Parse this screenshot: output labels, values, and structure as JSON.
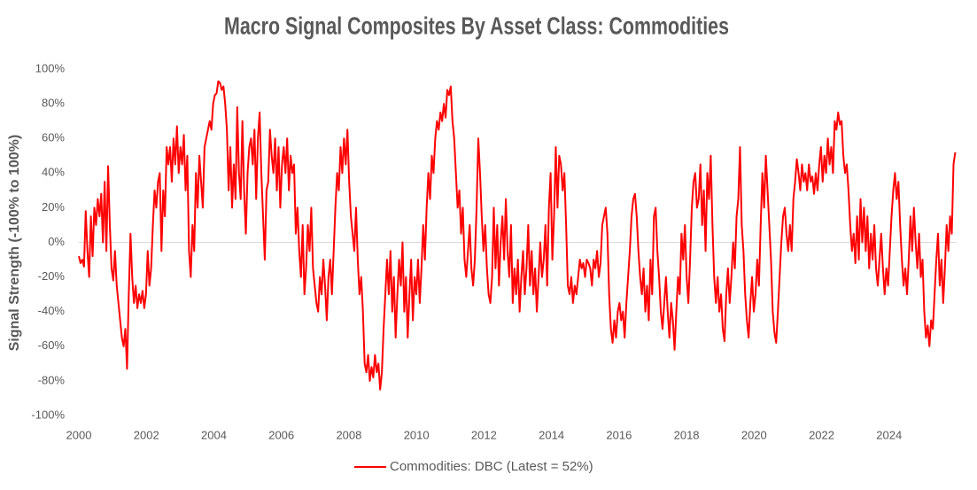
{
  "chart_data": {
    "type": "line",
    "title": "Macro Signal Composites By Asset Class: Commodities",
    "y_label": "Signal Strength (-100% to 100%)",
    "legend": "bottom",
    "grid": false,
    "xlim": [
      2000,
      2026
    ],
    "xticks": [
      2000,
      2002,
      2004,
      2006,
      2008,
      2010,
      2012,
      2014,
      2016,
      2018,
      2020,
      2022,
      2024
    ],
    "ylim": [
      -100,
      100
    ],
    "yticks": [
      {
        "value": -100,
        "label": "-100%"
      },
      {
        "value": -80,
        "label": "-80%"
      },
      {
        "value": -60,
        "label": "-60%"
      },
      {
        "value": -40,
        "label": "-40%"
      },
      {
        "value": -20,
        "label": "-20%"
      },
      {
        "value": 0,
        "label": "0%"
      },
      {
        "value": 20,
        "label": "20%"
      },
      {
        "value": 40,
        "label": "40%"
      },
      {
        "value": 60,
        "label": "60%"
      },
      {
        "value": 80,
        "label": "80%"
      },
      {
        "value": 100,
        "label": "100%"
      }
    ],
    "x": [
      2000,
      2000.051,
      2000.102,
      2000.153,
      2000.204,
      2000.255,
      2000.306,
      2000.357,
      2000.408,
      2000.459,
      2000.51,
      2000.561,
      2000.612,
      2000.663,
      2000.714,
      2000.765,
      2000.816,
      2000.867,
      2000.918,
      2000.969,
      2001.02,
      2001.071,
      2001.122,
      2001.173,
      2001.224,
      2001.275,
      2001.326,
      2001.377,
      2001.428,
      2001.479,
      2001.53,
      2001.581,
      2001.632,
      2001.683,
      2001.734,
      2001.785,
      2001.836,
      2001.887,
      2001.938,
      2001.989,
      2002.04,
      2002.091,
      2002.142,
      2002.193,
      2002.244,
      2002.295,
      2002.346,
      2002.397,
      2002.448,
      2002.499,
      2002.55,
      2002.601,
      2002.652,
      2002.703,
      2002.754,
      2002.805,
      2002.856,
      2002.907,
      2002.958,
      2003.009,
      2003.06,
      2003.111,
      2003.162,
      2003.213,
      2003.264,
      2003.315,
      2003.366,
      2003.417,
      2003.468,
      2003.519,
      2003.57,
      2003.621,
      2003.672,
      2003.723,
      2003.774,
      2003.825,
      2003.876,
      2003.927,
      2003.978,
      2004.029,
      2004.08,
      2004.131,
      2004.182,
      2004.233,
      2004.284,
      2004.335,
      2004.386,
      2004.437,
      2004.488,
      2004.539,
      2004.59,
      2004.641,
      2004.692,
      2004.743,
      2004.794,
      2004.845,
      2004.896,
      2004.947,
      2004.998,
      2005.049,
      2005.1,
      2005.151,
      2005.202,
      2005.253,
      2005.304,
      2005.355,
      2005.406,
      2005.457,
      2005.508,
      2005.559,
      2005.61,
      2005.661,
      2005.712,
      2005.763,
      2005.814,
      2005.865,
      2005.916,
      2005.967,
      2006.018,
      2006.069,
      2006.12,
      2006.171,
      2006.222,
      2006.273,
      2006.324,
      2006.375,
      2006.426,
      2006.477,
      2006.528,
      2006.579,
      2006.63,
      2006.681,
      2006.732,
      2006.783,
      2006.834,
      2006.885,
      2006.936,
      2006.987,
      2007.038,
      2007.089,
      2007.14,
      2007.191,
      2007.242,
      2007.293,
      2007.344,
      2007.395,
      2007.446,
      2007.497,
      2007.548,
      2007.599,
      2007.65,
      2007.701,
      2007.752,
      2007.803,
      2007.854,
      2007.905,
      2007.956,
      2008.007,
      2008.058,
      2008.109,
      2008.16,
      2008.211,
      2008.262,
      2008.313,
      2008.364,
      2008.415,
      2008.466,
      2008.517,
      2008.568,
      2008.619,
      2008.67,
      2008.721,
      2008.772,
      2008.823,
      2008.874,
      2008.925,
      2008.976,
      2009.027,
      2009.078,
      2009.129,
      2009.18,
      2009.231,
      2009.282,
      2009.333,
      2009.384,
      2009.435,
      2009.486,
      2009.537,
      2009.588,
      2009.639,
      2009.69,
      2009.741,
      2009.792,
      2009.843,
      2009.894,
      2009.945,
      2009.996,
      2010.047,
      2010.098,
      2010.149,
      2010.2,
      2010.251,
      2010.302,
      2010.353,
      2010.404,
      2010.455,
      2010.506,
      2010.557,
      2010.608,
      2010.659,
      2010.71,
      2010.761,
      2010.812,
      2010.863,
      2010.914,
      2010.965,
      2011.016,
      2011.067,
      2011.118,
      2011.169,
      2011.22,
      2011.271,
      2011.322,
      2011.373,
      2011.424,
      2011.475,
      2011.526,
      2011.577,
      2011.628,
      2011.679,
      2011.73,
      2011.781,
      2011.832,
      2011.883,
      2011.934,
      2011.985,
      2012.036,
      2012.087,
      2012.138,
      2012.189,
      2012.24,
      2012.291,
      2012.342,
      2012.393,
      2012.444,
      2012.495,
      2012.546,
      2012.597,
      2012.648,
      2012.699,
      2012.75,
      2012.801,
      2012.852,
      2012.903,
      2012.954,
      2013.005,
      2013.056,
      2013.107,
      2013.158,
      2013.209,
      2013.26,
      2013.311,
      2013.362,
      2013.413,
      2013.464,
      2013.515,
      2013.566,
      2013.617,
      2013.668,
      2013.719,
      2013.77,
      2013.821,
      2013.872,
      2013.923,
      2013.974,
      2014.025,
      2014.076,
      2014.127,
      2014.178,
      2014.229,
      2014.28,
      2014.331,
      2014.382,
      2014.433,
      2014.484,
      2014.535,
      2014.586,
      2014.637,
      2014.688,
      2014.739,
      2014.79,
      2014.841,
      2014.892,
      2014.943,
      2014.994,
      2015.045,
      2015.096,
      2015.147,
      2015.198,
      2015.249,
      2015.3,
      2015.351,
      2015.402,
      2015.453,
      2015.504,
      2015.555,
      2015.606,
      2015.657,
      2015.708,
      2015.759,
      2015.81,
      2015.861,
      2015.912,
      2015.963,
      2016.014,
      2016.065,
      2016.116,
      2016.167,
      2016.218,
      2016.269,
      2016.32,
      2016.371,
      2016.422,
      2016.473,
      2016.524,
      2016.575,
      2016.626,
      2016.677,
      2016.728,
      2016.779,
      2016.83,
      2016.881,
      2016.932,
      2016.983,
      2017.034,
      2017.085,
      2017.136,
      2017.187,
      2017.238,
      2017.289,
      2017.34,
      2017.391,
      2017.442,
      2017.493,
      2017.544,
      2017.595,
      2017.646,
      2017.697,
      2017.748,
      2017.799,
      2017.85,
      2017.901,
      2017.952,
      2018.003,
      2018.054,
      2018.105,
      2018.156,
      2018.207,
      2018.258,
      2018.309,
      2018.36,
      2018.411,
      2018.462,
      2018.513,
      2018.564,
      2018.615,
      2018.666,
      2018.717,
      2018.768,
      2018.819,
      2018.87,
      2018.921,
      2018.972,
      2019.023,
      2019.074,
      2019.125,
      2019.176,
      2019.227,
      2019.278,
      2019.329,
      2019.38,
      2019.431,
      2019.482,
      2019.533,
      2019.584,
      2019.635,
      2019.686,
      2019.737,
      2019.788,
      2019.839,
      2019.89,
      2019.941,
      2019.992,
      2020.043,
      2020.094,
      2020.145,
      2020.196,
      2020.247,
      2020.298,
      2020.349,
      2020.4,
      2020.451,
      2020.502,
      2020.553,
      2020.604,
      2020.655,
      2020.706,
      2020.757,
      2020.808,
      2020.859,
      2020.91,
      2020.961,
      2021.012,
      2021.063,
      2021.114,
      2021.165,
      2021.216,
      2021.267,
      2021.318,
      2021.369,
      2021.42,
      2021.471,
      2021.522,
      2021.573,
      2021.624,
      2021.675,
      2021.726,
      2021.777,
      2021.828,
      2021.879,
      2021.93,
      2021.981,
      2022.032,
      2022.083,
      2022.134,
      2022.185,
      2022.236,
      2022.287,
      2022.338,
      2022.389,
      2022.44,
      2022.491,
      2022.542,
      2022.593,
      2022.644,
      2022.695,
      2022.746,
      2022.797,
      2022.848,
      2022.899,
      2022.95,
      2023.001,
      2023.052,
      2023.103,
      2023.154,
      2023.205,
      2023.256,
      2023.307,
      2023.358,
      2023.409,
      2023.46,
      2023.511,
      2023.562,
      2023.613,
      2023.664,
      2023.715,
      2023.766,
      2023.817,
      2023.868,
      2023.919,
      2023.97,
      2024.021,
      2024.072,
      2024.123,
      2024.174,
      2024.225,
      2024.276,
      2024.327,
      2024.378,
      2024.429,
      2024.48,
      2024.531,
      2024.582,
      2024.633,
      2024.684,
      2024.735,
      2024.786,
      2024.837,
      2024.888,
      2024.939,
      2024.99,
      2025.041,
      2025.092,
      2025.143,
      2025.194,
      2025.245,
      2025.296,
      2025.347,
      2025.398,
      2025.449,
      2025.5,
      2025.551,
      2025.602,
      2025.653,
      2025.704,
      2025.755,
      2025.806,
      2025.857,
      2025.908,
      2025.959
    ],
    "series": [
      {
        "name": "Commodities: DBC (Latest = 52%)",
        "color": "#ff0000",
        "values": [
          -8,
          -12,
          -10,
          -14,
          18,
          -5,
          -20,
          15,
          -8,
          20,
          10,
          25,
          15,
          28,
          0,
          35,
          -5,
          44,
          10,
          -15,
          -22,
          -5,
          -25,
          -35,
          -45,
          -55,
          -60,
          -50,
          -73,
          -30,
          5,
          -20,
          -35,
          -25,
          -38,
          -30,
          -35,
          -28,
          -38,
          -30,
          -5,
          -25,
          -15,
          10,
          30,
          20,
          35,
          40,
          -5,
          30,
          15,
          55,
          45,
          55,
          35,
          60,
          45,
          67,
          40,
          55,
          45,
          62,
          30,
          50,
          -5,
          -20,
          10,
          -5,
          40,
          20,
          50,
          35,
          20,
          55,
          60,
          65,
          70,
          65,
          80,
          85,
          86,
          93,
          92,
          88,
          90,
          80,
          65,
          30,
          55,
          20,
          45,
          25,
          78,
          40,
          25,
          70,
          30,
          5,
          40,
          55,
          60,
          45,
          65,
          25,
          60,
          75,
          40,
          15,
          -10,
          30,
          35,
          65,
          50,
          40,
          60,
          30,
          55,
          20,
          45,
          55,
          40,
          60,
          30,
          50,
          40,
          45,
          5,
          20,
          -5,
          -20,
          10,
          -30,
          -15,
          10,
          -5,
          20,
          -15,
          -25,
          -35,
          -40,
          -20,
          -30,
          -10,
          -25,
          -45,
          -20,
          -10,
          -30,
          -5,
          20,
          40,
          30,
          55,
          40,
          60,
          45,
          65,
          35,
          15,
          5,
          -5,
          20,
          -10,
          -30,
          -20,
          -40,
          -70,
          -75,
          -65,
          -80,
          -72,
          -78,
          -65,
          -75,
          -70,
          -85,
          -75,
          -50,
          -30,
          -10,
          -30,
          -5,
          -40,
          -20,
          -55,
          -30,
          -10,
          -25,
          0,
          -40,
          -20,
          -55,
          -30,
          -10,
          -45,
          -20,
          -30,
          -10,
          -35,
          -15,
          10,
          -10,
          20,
          40,
          25,
          50,
          40,
          60,
          70,
          65,
          75,
          70,
          80,
          72,
          88,
          85,
          90,
          70,
          60,
          40,
          20,
          30,
          5,
          20,
          -10,
          -20,
          -5,
          10,
          -15,
          -25,
          -10,
          20,
          60,
          40,
          15,
          -5,
          10,
          -15,
          -30,
          -35,
          -20,
          20,
          -15,
          10,
          -25,
          0,
          15,
          -10,
          25,
          -5,
          -20,
          10,
          -35,
          -15,
          -30,
          -10,
          -40,
          -20,
          -5,
          -30,
          -15,
          10,
          -25,
          -5,
          -30,
          -15,
          -40,
          -20,
          0,
          -20,
          -10,
          10,
          -25,
          20,
          40,
          -10,
          15,
          55,
          20,
          50,
          45,
          30,
          40,
          10,
          -25,
          -30,
          -20,
          -35,
          -25,
          -30,
          -20,
          -10,
          -15,
          -12,
          -20,
          -10,
          -12,
          -15,
          -25,
          -10,
          -15,
          -5,
          -20,
          -12,
          10,
          15,
          20,
          5,
          -30,
          -50,
          -58,
          -45,
          -55,
          -40,
          -35,
          -45,
          -40,
          -55,
          -35,
          -20,
          -5,
          15,
          25,
          28,
          15,
          -5,
          -20,
          -30,
          -15,
          -40,
          -25,
          -45,
          -10,
          -30,
          15,
          20,
          -5,
          -20,
          -40,
          -50,
          -35,
          -20,
          -40,
          -55,
          -35,
          -45,
          -62,
          -40,
          -20,
          -30,
          5,
          -10,
          10,
          -20,
          -35,
          -10,
          20,
          35,
          40,
          20,
          25,
          45,
          10,
          30,
          -5,
          40,
          25,
          50,
          10,
          -20,
          -35,
          -20,
          -40,
          -30,
          -50,
          -57,
          -30,
          -15,
          -35,
          -20,
          0,
          -15,
          15,
          25,
          55,
          10,
          -5,
          -30,
          -45,
          -55,
          -35,
          -20,
          -40,
          -30,
          -10,
          -25,
          10,
          40,
          20,
          50,
          30,
          10,
          -10,
          -40,
          -52,
          -58,
          -40,
          -20,
          0,
          15,
          20,
          5,
          -5,
          10,
          -5,
          25,
          35,
          48,
          40,
          30,
          45,
          35,
          40,
          30,
          45,
          35,
          38,
          28,
          40,
          30,
          45,
          55,
          35,
          50,
          40,
          60,
          45,
          55,
          40,
          70,
          65,
          75,
          68,
          70,
          50,
          40,
          45,
          30,
          10,
          -5,
          5,
          -12,
          15,
          -10,
          25,
          0,
          20,
          -5,
          15,
          -15,
          5,
          -10,
          10,
          -15,
          -25,
          -10,
          5,
          -15,
          -30,
          -15,
          -25,
          -5,
          15,
          30,
          40,
          25,
          35,
          10,
          -10,
          -25,
          -15,
          -30,
          -10,
          15,
          -5,
          20,
          0,
          -15,
          5,
          -20,
          -10,
          -40,
          -55,
          -48,
          -60,
          -45,
          -50,
          -30,
          -10,
          5,
          -25,
          -10,
          -35,
          -15,
          10,
          -5,
          15,
          5,
          45,
          52
        ]
      }
    ]
  }
}
